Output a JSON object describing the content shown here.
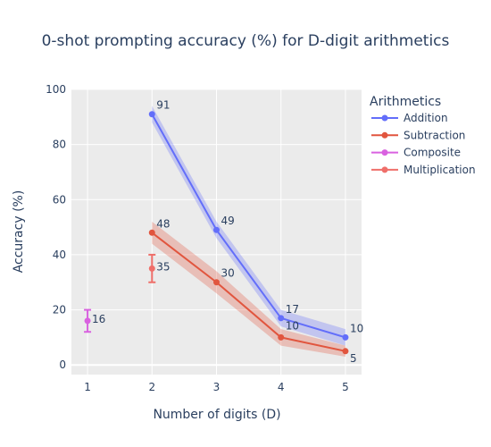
{
  "chart_data": {
    "type": "line",
    "title": "0-shot prompting accuracy (%) for D-digit arithmetics",
    "xlabel": "Number of digits (D)",
    "ylabel": "Accuracy (%)",
    "xlim": [
      0.75,
      5.25
    ],
    "ylim": [
      -3.5,
      100
    ],
    "x_ticks": [
      1,
      2,
      3,
      4,
      5
    ],
    "y_ticks": [
      0,
      20,
      40,
      60,
      80,
      100
    ],
    "grid": true,
    "legend": {
      "title": "Arithmetics",
      "placement": "right"
    },
    "series": [
      {
        "name": "Addition",
        "color": "#636efa",
        "x": [
          2,
          3,
          4,
          5
        ],
        "y": [
          91,
          49,
          17,
          10
        ],
        "lower": [
          88,
          46,
          14,
          7
        ],
        "upper": [
          94,
          52,
          20,
          13
        ],
        "labels": [
          "91",
          "49",
          "17",
          "10"
        ]
      },
      {
        "name": "Subtraction",
        "color": "#e1553e",
        "x": [
          2,
          3,
          4,
          5
        ],
        "y": [
          48,
          30,
          10,
          5
        ],
        "lower": [
          44,
          26,
          7,
          3
        ],
        "upper": [
          52,
          34,
          13,
          7
        ],
        "labels": [
          "48",
          "30",
          "10",
          "5"
        ]
      },
      {
        "name": "Composite",
        "color": "#d962e0",
        "x": [
          1
        ],
        "y": [
          16
        ],
        "error_minus": [
          4
        ],
        "error_plus": [
          4
        ],
        "labels": [
          "16"
        ]
      },
      {
        "name": "Multiplication",
        "color": "#ef6f6a",
        "x": [
          2
        ],
        "y": [
          35
        ],
        "error_minus": [
          5
        ],
        "error_plus": [
          5
        ],
        "labels": [
          "35"
        ]
      }
    ]
  }
}
